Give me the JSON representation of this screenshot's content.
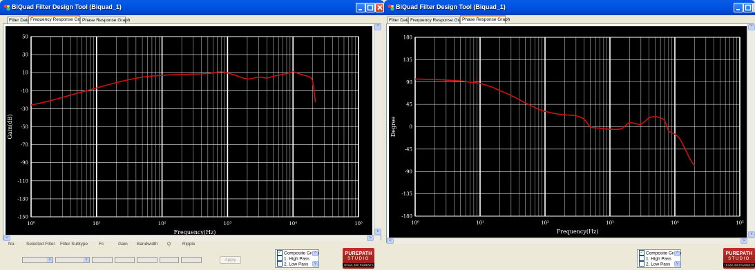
{
  "colors": {
    "curve": "#d01010",
    "plot_bg": "#000000",
    "grid": "#ffffff",
    "title_bar": "#0054e3"
  },
  "window1": {
    "title": "BiQuad Filter Design Tool (Biquad_1)",
    "tabs": [
      "Filter Data",
      "Frequency Response Graph",
      "Phase Response Graph"
    ],
    "active_tab": 1,
    "controls": {
      "no_label": "No.",
      "selected_filter_label": "Selected Filter",
      "filter_subtype_label": "Filter Subtype",
      "fc_label": "Fc",
      "gain_label": "Gain",
      "bandwidth_label": "Bandwidth",
      "q_label": "Q",
      "ripple_label": "Ripple",
      "apply_label": "Apply"
    },
    "list_items": [
      {
        "label": "Composite Graph",
        "checked": true
      },
      {
        "label": "1. High Pass",
        "checked": false
      },
      {
        "label": "2. Low Pass",
        "checked": false
      }
    ],
    "logo": {
      "line1": "PUREPATH",
      "line2": "STUDIO",
      "line3": "TEXAS INSTRUMENTS"
    }
  },
  "window2": {
    "title": "BiQuad Filter Design Tool (Biquad_1)",
    "tabs": [
      "Filter Data",
      "Frequency Response Graph",
      "Phase Response Graph"
    ],
    "active_tab": 2,
    "list_items": [
      {
        "label": "Composite Graph",
        "checked": true
      },
      {
        "label": "1. High Pass",
        "checked": false
      },
      {
        "label": "2. Low Pass",
        "checked": false
      }
    ],
    "logo": {
      "line1": "PUREPATH",
      "line2": "STUDIO",
      "line3": "TEXAS INSTRUMENTS"
    }
  },
  "chart_data": [
    {
      "type": "line",
      "title": "",
      "xlabel": "Frequency(Hz)",
      "ylabel": "Gain(dB)",
      "x_scale": "log",
      "xlim": [
        1,
        100000
      ],
      "ylim": [
        -150,
        50
      ],
      "x_ticks": [
        "10⁰",
        "10¹",
        "10²",
        "10³",
        "10⁴",
        "10⁵"
      ],
      "y_ticks": [
        "50",
        "30",
        "10",
        "-10",
        "-30",
        "-50",
        "-70",
        "-90",
        "-110",
        "-130",
        "-150"
      ],
      "grid": true,
      "series": [
        {
          "x": [
            1,
            2,
            5,
            10,
            20,
            50,
            100,
            200,
            500,
            800,
            1200,
            2000,
            3000,
            4000,
            5000,
            6000,
            7000,
            8000,
            9000,
            10000,
            12000,
            15000,
            18000,
            20000,
            22000
          ],
          "y": [
            -26,
            -21,
            -13,
            -7,
            -1,
            5,
            7,
            8,
            9,
            11,
            8,
            3,
            5,
            4,
            6,
            7,
            8,
            9,
            10,
            11,
            9,
            7,
            5,
            0,
            -23
          ]
        }
      ]
    },
    {
      "type": "line",
      "title": "",
      "xlabel": "Frequency(Hz)",
      "ylabel": "Degree",
      "x_scale": "log",
      "xlim": [
        1,
        100000
      ],
      "ylim": [
        -180,
        180
      ],
      "x_ticks": [
        "10⁰",
        "10¹",
        "10²",
        "10³",
        "10⁴",
        "10⁵"
      ],
      "y_ticks": [
        "180",
        "135",
        "90",
        "45",
        "0",
        "-45",
        "-90",
        "-135",
        "-180"
      ],
      "grid": true,
      "series": [
        {
          "x": [
            1,
            2,
            3,
            5,
            8,
            10,
            15,
            20,
            30,
            50,
            80,
            100,
            150,
            200,
            300,
            400,
            500,
            700,
            1000,
            1500,
            2000,
            3000,
            4000,
            5000,
            6000,
            7000,
            8000,
            10000,
            12000,
            15000,
            18000,
            20000
          ],
          "y": [
            96,
            95,
            94,
            92,
            89,
            87,
            80,
            73,
            63,
            48,
            35,
            31,
            26,
            24,
            22,
            15,
            0,
            -3,
            -5,
            -4,
            8,
            5,
            18,
            20,
            18,
            12,
            -8,
            -15,
            -25,
            -50,
            -70,
            -78
          ]
        }
      ]
    }
  ]
}
